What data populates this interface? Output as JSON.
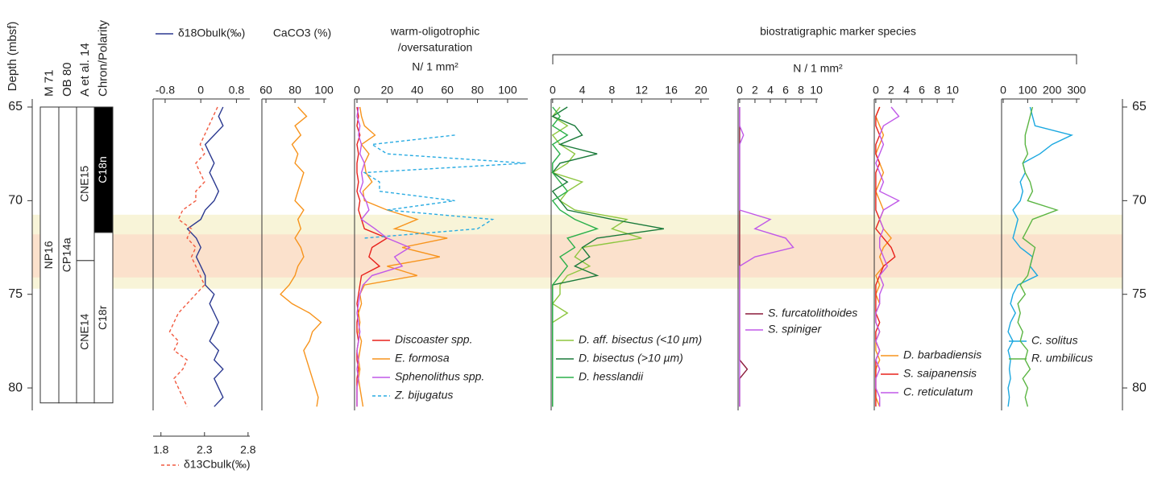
{
  "chart_data": [
    {
      "type": "depth",
      "title": "Depth (mbsf)",
      "ylim": [
        64.57,
        81.2
      ],
      "yticks": [
        65,
        70,
        75,
        80
      ],
      "depths": [
        65,
        65.5,
        66,
        66.5,
        67,
        67.5,
        68,
        68.5,
        69,
        69.5,
        70,
        70.5,
        71,
        71.5,
        72,
        72.5,
        73,
        73.5,
        74,
        74.5,
        75,
        75.5,
        76,
        76.5,
        77,
        77.5,
        78,
        78.5,
        79,
        79.5,
        80,
        80.5,
        81
      ],
      "bands": [
        {
          "top": 70.75,
          "bottom": 74.7,
          "color": "#f8f4d8"
        },
        {
          "top": 71.8,
          "bottom": 74.1,
          "color": "#fbe1cc"
        }
      ]
    },
    {
      "type": "strat",
      "columns": [
        {
          "name": "M 71",
          "zones": [
            {
              "label": "NP16",
              "top": 65,
              "bottom": 80.8,
              "color": "#ffffff"
            }
          ]
        },
        {
          "name": "OB 80",
          "zones": [
            {
              "label": "CP14a",
              "top": 65,
              "bottom": 80.8,
              "color": "#ffffff"
            }
          ]
        },
        {
          "name": "A et al. 14",
          "zones": [
            {
              "label": "CNE15",
              "top": 65,
              "bottom": 73.2,
              "color": "#ffffff"
            },
            {
              "label": "CNE14",
              "top": 73.2,
              "bottom": 80.8,
              "color": "#ffffff"
            }
          ]
        },
        {
          "name": "Chron/Polarity",
          "zones": [
            {
              "label": "C18n",
              "top": 65,
              "bottom": 71.7,
              "color": "#000000"
            },
            {
              "label": "C18r",
              "top": 71.7,
              "bottom": 80.8,
              "color": "#ffffff"
            }
          ]
        }
      ]
    },
    {
      "type": "line",
      "xlim": [
        -1.07,
        1.1
      ],
      "xticks": [
        -0.8,
        0,
        0.8
      ],
      "x2lim": [
        1.71,
        2.82
      ],
      "x2ticks": [
        1.8,
        2.3,
        2.8
      ],
      "series": [
        {
          "name": "δ18Obulk(‰)",
          "color": "#2b3990",
          "values": [
            0.5,
            0.4,
            0.5,
            0.3,
            0.1,
            0.2,
            0.3,
            0.2,
            0.3,
            0.4,
            0.3,
            0.1,
            0,
            -0.3,
            -0.1,
            0,
            -0.1,
            0,
            0.1,
            0.1,
            0.3,
            0.2,
            0.3,
            0.4,
            0.3,
            0.2,
            0.4,
            0.3,
            0.5,
            0.3,
            0.4,
            0.5,
            0.3
          ]
        },
        {
          "name": "δ13Cbulk(‰)",
          "color": "#f15a40",
          "dash": true,
          "axis": "x2",
          "values": [
            2.45,
            2.4,
            2.35,
            2.3,
            2.25,
            2.3,
            2.2,
            2.25,
            2.3,
            2.2,
            2.2,
            2.05,
            2.0,
            2.15,
            2.1,
            2.2,
            2.15,
            2.2,
            2.25,
            2.3,
            2.2,
            2.1,
            2.0,
            1.95,
            1.9,
            2.0,
            1.95,
            2.1,
            2.05,
            1.95,
            2.0,
            2.05,
            2.1
          ]
        }
      ]
    },
    {
      "type": "line",
      "title": "CaCO3 (%)",
      "xlim": [
        57.2,
        101.6
      ],
      "xticks": [
        60,
        80,
        100
      ],
      "series": [
        {
          "color": "#f7941d",
          "values": [
            82,
            88,
            80,
            84,
            78,
            82,
            80,
            86,
            84,
            82,
            80,
            86,
            82,
            84,
            80,
            84,
            86,
            82,
            80,
            76,
            70,
            78,
            90,
            98,
            92,
            90,
            86,
            88,
            90,
            92,
            94,
            96,
            95
          ]
        }
      ]
    },
    {
      "type": "line",
      "title": "warm-oligotrophic",
      "subtitle": "/oversaturation",
      "unit": "N/ 1 mm²",
      "xlim": [
        -1.6,
        113.4
      ],
      "xticks": [
        0,
        20,
        40,
        60,
        80,
        100
      ],
      "series": [
        {
          "name": "Discoaster spp.",
          "color": "#e8221c",
          "values": [
            0,
            1,
            0,
            2,
            0,
            1,
            0,
            0,
            1,
            0,
            2,
            1,
            3,
            5,
            20,
            10,
            8,
            15,
            3,
            2,
            1,
            0,
            1,
            0,
            0,
            1,
            0,
            0,
            1,
            0,
            0,
            0,
            0
          ]
        },
        {
          "name": "E. formosa",
          "color": "#f7941d",
          "values": [
            2,
            3,
            5,
            12,
            3,
            8,
            5,
            6,
            10,
            4,
            5,
            20,
            40,
            25,
            60,
            30,
            55,
            20,
            40,
            5,
            2,
            3,
            1,
            2,
            1,
            3,
            2,
            1,
            2,
            1,
            2,
            3,
            4
          ]
        },
        {
          "name": "Sphenolithus spp.",
          "color": "#c058e8",
          "values": [
            1,
            0,
            2,
            1,
            3,
            2,
            5,
            3,
            4,
            2,
            6,
            8,
            3,
            12,
            20,
            35,
            25,
            30,
            10,
            4,
            2,
            1,
            0,
            1,
            2,
            1,
            0,
            1,
            0,
            1,
            0,
            0,
            0
          ]
        },
        {
          "name": "Z. bijugatus",
          "color": "#29abe2",
          "dash": true,
          "values": [
            null,
            null,
            null,
            65,
            10,
            20,
            112,
            5,
            15,
            15,
            65,
            20,
            90,
            80,
            5,
            null,
            null,
            null,
            null,
            null,
            null,
            null,
            null,
            null,
            null,
            null,
            null,
            null,
            null,
            null,
            null,
            null,
            null
          ]
        }
      ]
    },
    {
      "type": "line",
      "xlim": [
        -0.2,
        21.1
      ],
      "xticks": [
        0,
        4,
        8,
        12,
        16,
        20
      ],
      "series": [
        {
          "name": "D. aff. bisectus (<10 µm)",
          "color": "#8dc63f",
          "values": [
            1,
            0,
            2,
            0,
            1,
            3,
            2,
            0,
            4,
            2,
            1,
            3,
            10,
            8,
            12,
            4,
            3,
            5,
            2,
            1,
            1,
            0,
            2,
            0,
            0,
            0,
            0,
            0,
            0,
            0,
            0,
            0,
            0
          ]
        },
        {
          "name": "D. bisectus (>10 µm)",
          "color": "#1a7a3a",
          "values": [
            2,
            0,
            3,
            4,
            1,
            6,
            1,
            0,
            2,
            0,
            1,
            2,
            8,
            15,
            6,
            4,
            5,
            3,
            6,
            0,
            0,
            0,
            0,
            0,
            0,
            0,
            0,
            0,
            0,
            0,
            0,
            0,
            0
          ]
        },
        {
          "name": "D. hesslandii",
          "color": "#2bb04a",
          "values": [
            0,
            1,
            0,
            2,
            0,
            1,
            0,
            0,
            1,
            2,
            0,
            1,
            3,
            6,
            2,
            3,
            1,
            2,
            1,
            0,
            0,
            0,
            0,
            0,
            0,
            0,
            0,
            0,
            0,
            0,
            0,
            0,
            0
          ]
        }
      ]
    },
    {
      "type": "line",
      "xlim": [
        -0.2,
        10.2
      ],
      "xticks": [
        0,
        2,
        4,
        6,
        8,
        10
      ],
      "series": [
        {
          "name": "S. furcatolithoides",
          "color": "#8b1a3a",
          "values": [
            0,
            0,
            0,
            0,
            0,
            0,
            0,
            0,
            0,
            0,
            0,
            0,
            0,
            0,
            0,
            0,
            0,
            0,
            0,
            0,
            0,
            0,
            0,
            0,
            0,
            0,
            0,
            0,
            1,
            0,
            0,
            0,
            0
          ]
        },
        {
          "name": "S. spiniger",
          "color": "#c058e8",
          "values": [
            0,
            0,
            0,
            0.5,
            0,
            0,
            0,
            0,
            0,
            0,
            0,
            0,
            4,
            2,
            6,
            7,
            2,
            0,
            0,
            0,
            0,
            0,
            0,
            0,
            0,
            0,
            0,
            0,
            0,
            0,
            0,
            0,
            0
          ]
        }
      ]
    },
    {
      "type": "line",
      "xlim": [
        -0.2,
        10.3
      ],
      "xticks": [
        0,
        2,
        4,
        6,
        8,
        10
      ],
      "series": [
        {
          "name": "D. barbadiensis",
          "color": "#f7941d",
          "values": [
            0.5,
            0,
            0.5,
            1,
            0.5,
            0,
            0.5,
            1,
            0.5,
            0,
            0.5,
            1,
            0.5,
            1,
            2,
            1,
            0.5,
            1,
            0,
            0.5,
            0,
            0.5,
            0,
            0,
            0.5,
            0,
            0,
            0.5,
            0,
            0,
            0,
            0,
            0.5
          ]
        },
        {
          "name": "S. saipanensis",
          "color": "#e8221c",
          "values": [
            0.5,
            0,
            0,
            0.5,
            0,
            0,
            0.5,
            0,
            0,
            0,
            0,
            0,
            0.5,
            0,
            1,
            2,
            2.5,
            1,
            0.5,
            0,
            0,
            0,
            0,
            0.5,
            0,
            0,
            0.5,
            0,
            0,
            0,
            0,
            0,
            0
          ]
        },
        {
          "name": "C. reticulatum",
          "color": "#c058e8",
          "values": [
            2,
            3,
            1,
            0.5,
            1,
            0.5,
            0,
            0.5,
            1,
            0.5,
            3,
            1,
            0.5,
            1,
            0.5,
            0.5,
            1,
            1.5,
            0.5,
            1,
            0.5,
            0.5,
            0,
            0,
            0.5,
            0,
            0.5,
            0,
            0.5,
            0,
            0,
            0.5,
            0.5
          ]
        }
      ]
    },
    {
      "type": "line",
      "xlim": [
        -6.6,
        313
      ],
      "xticks": [
        0,
        100,
        200,
        300
      ],
      "series": [
        {
          "name": "C. solitus",
          "color": "#1ba8e0",
          "values": [
            110,
            120,
            130,
            280,
            200,
            150,
            80,
            90,
            70,
            80,
            70,
            40,
            60,
            50,
            40,
            70,
            120,
            110,
            140,
            60,
            40,
            30,
            50,
            30,
            20,
            40,
            20,
            30,
            25,
            30,
            20,
            25,
            20
          ]
        },
        {
          "name": "R. umbilicus",
          "color": "#5bb543",
          "values": [
            120,
            110,
            100,
            90,
            90,
            100,
            80,
            90,
            110,
            120,
            100,
            220,
            120,
            100,
            80,
            130,
            120,
            110,
            100,
            70,
            90,
            60,
            70,
            60,
            80,
            70,
            100,
            90,
            110,
            80,
            100,
            90,
            100
          ]
        }
      ]
    }
  ],
  "group": {
    "title": "biostratigraphic marker species",
    "unit": "N / 1 mm²"
  }
}
